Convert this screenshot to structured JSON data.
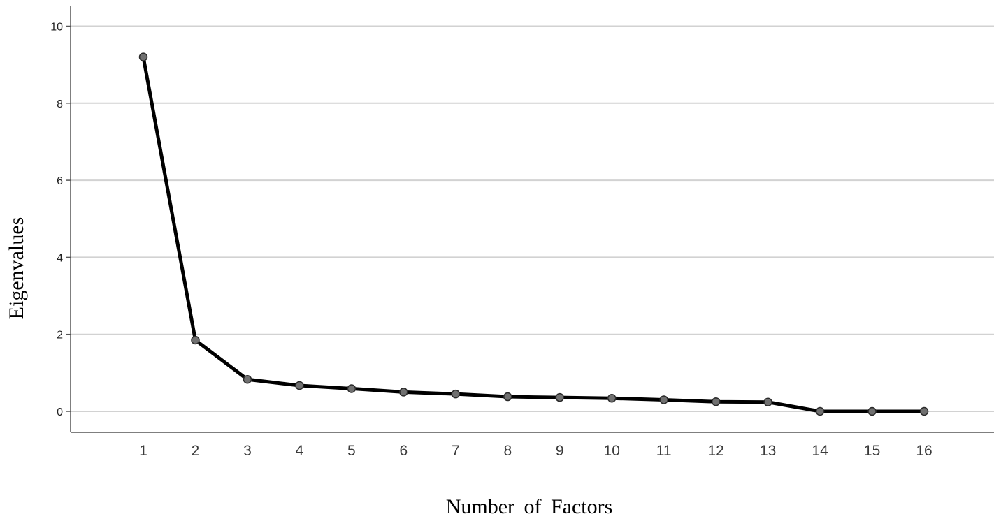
{
  "chart_data": {
    "type": "line",
    "title": "",
    "xlabel": "Number of Factors",
    "ylabel": "Eigenvalues",
    "x": [
      1,
      2,
      3,
      4,
      5,
      6,
      7,
      8,
      9,
      10,
      11,
      12,
      13,
      14,
      15,
      16
    ],
    "y": [
      9.2,
      1.85,
      0.83,
      0.67,
      0.59,
      0.5,
      0.45,
      0.38,
      0.36,
      0.34,
      0.3,
      0.25,
      0.24,
      0.0,
      0.0,
      0.0
    ],
    "yticks": [
      "0",
      "2",
      "4",
      "6",
      "8",
      "10"
    ],
    "xticks": [
      "1",
      "2",
      "3",
      "4",
      "5",
      "6",
      "7",
      "8",
      "9",
      "10",
      "11",
      "12",
      "13",
      "14",
      "15",
      "16"
    ],
    "ylim": [
      -0.55,
      10.55
    ],
    "xlim": [
      0,
      17
    ],
    "grid": "horizontal",
    "legend": "none",
    "colors": {
      "line": "#000000",
      "marker_fill": "#707070",
      "marker_stroke": "#2a2a2a",
      "grid": "#d2d2d2",
      "axis": "#555555"
    }
  }
}
